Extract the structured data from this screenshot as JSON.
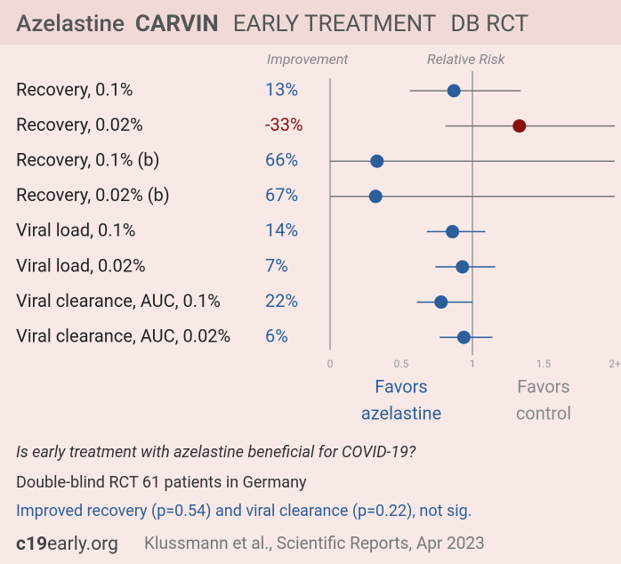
{
  "chart_data": {
    "type": "forest",
    "title_parts": [
      "Azelastine",
      "CARVIN",
      "EARLY TREATMENT",
      "DB RCT"
    ],
    "improvement_header": "Improvement",
    "risk_header": "Relative Risk",
    "categories": [
      "Recovery, 0.1%",
      "Recovery, 0.02%",
      "Recovery, 0.1% (b)",
      "Recovery, 0.02% (b)",
      "Viral load, 0.1%",
      "Viral load, 0.02%",
      "Viral clearance, AUC, 0.1%",
      "Viral clearance, AUC, 0.02%"
    ],
    "improvement": [
      13,
      -33,
      66,
      67,
      14,
      7,
      22,
      6
    ],
    "improvement_labels": [
      "13%",
      "-33%",
      "66%",
      "67%",
      "14%",
      "7%",
      "22%",
      "6%"
    ],
    "values": [
      0.87,
      1.33,
      0.33,
      0.32,
      0.86,
      0.93,
      0.78,
      0.94
    ],
    "ci_low": [
      0.56,
      0.81,
      0.0,
      0.0,
      0.68,
      0.74,
      0.61,
      0.77
    ],
    "ci_high": [
      1.34,
      2.0,
      2.0,
      2.0,
      1.09,
      1.16,
      1.0,
      1.14
    ],
    "color": "#2b5e9b",
    "negative_color": "#8b1010",
    "reference": 1,
    "xlim": [
      0,
      2
    ],
    "xticks": [
      0,
      0.5,
      1,
      1.5,
      {
        "value": 2,
        "label": "2+"
      }
    ],
    "favors_left": [
      "Favors",
      "azelastine"
    ],
    "favors_right": [
      "Favors",
      "control"
    ],
    "question": "Is early treatment with azelastine beneficial for COVID-19?",
    "design": "Double-blind RCT 61 patients in Germany",
    "conclusion": "Improved recovery (p=0.54) and viral clearance (p=0.22), not sig.",
    "site_bold": "c19",
    "site_rest": "early.org",
    "citation": "Klussmann et al., Scientific Reports, Apr 2023"
  }
}
